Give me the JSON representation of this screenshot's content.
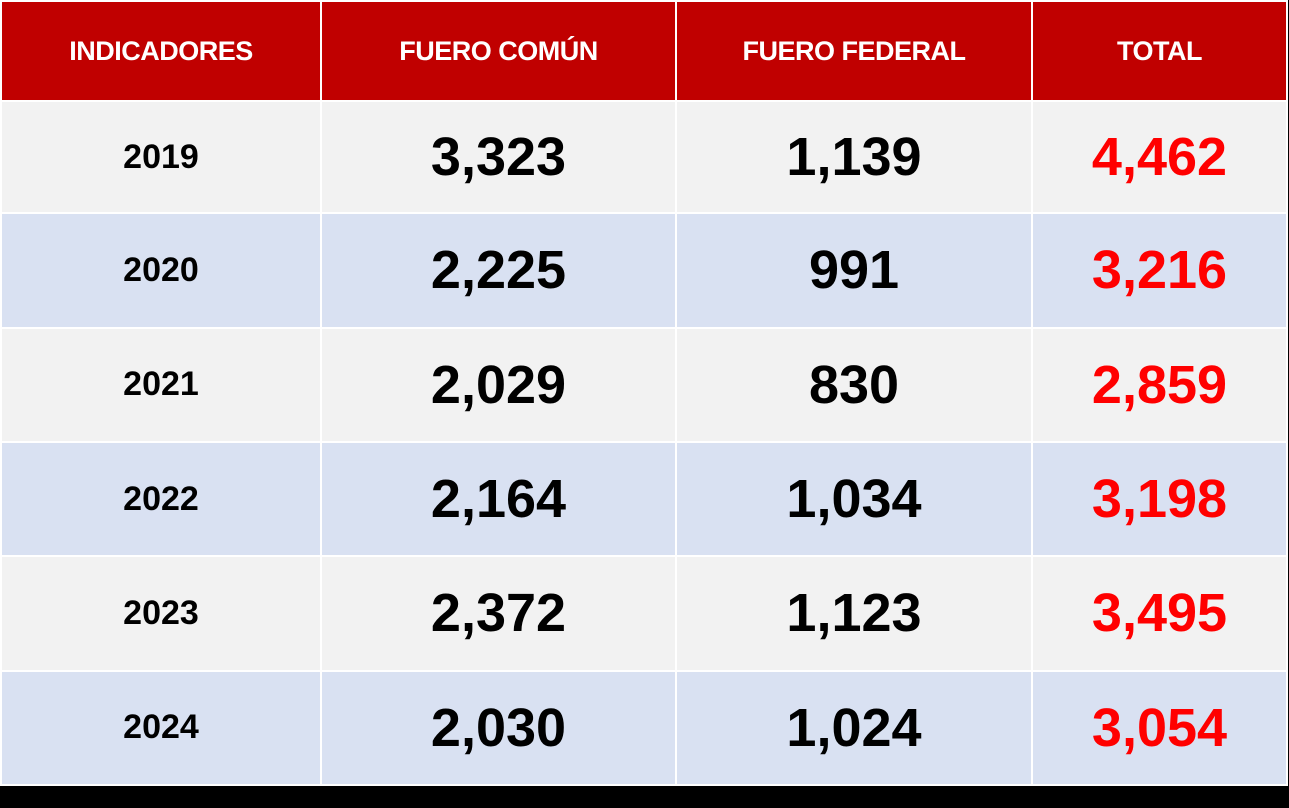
{
  "header": {
    "col_indicadores": "INDICADORES",
    "col_fuero_comun": "FUERO COMÚN",
    "col_fuero_federal": "FUERO FEDERAL",
    "col_total": "TOTAL"
  },
  "rows": [
    {
      "year": "2019",
      "fuero_comun": "3,323",
      "fuero_federal": "1,139",
      "total": "4,462"
    },
    {
      "year": "2020",
      "fuero_comun": "2,225",
      "fuero_federal": "991",
      "total": "3,216"
    },
    {
      "year": "2021",
      "fuero_comun": "2,029",
      "fuero_federal": "830",
      "total": "2,859"
    },
    {
      "year": "2022",
      "fuero_comun": "2,164",
      "fuero_federal": "1,034",
      "total": "3,198"
    },
    {
      "year": "2023",
      "fuero_comun": "2,372",
      "fuero_federal": "1,123",
      "total": "3,495"
    },
    {
      "year": "2024",
      "fuero_comun": "2,030",
      "fuero_federal": "1,024",
      "total": "3,054"
    }
  ],
  "colors": {
    "header_bg": "#c00000",
    "header_text": "#ffffff",
    "row_odd_bg": "#f2f2f2",
    "row_even_bg": "#d9e1f2",
    "total_text": "#ff0000",
    "value_text": "#000000"
  }
}
